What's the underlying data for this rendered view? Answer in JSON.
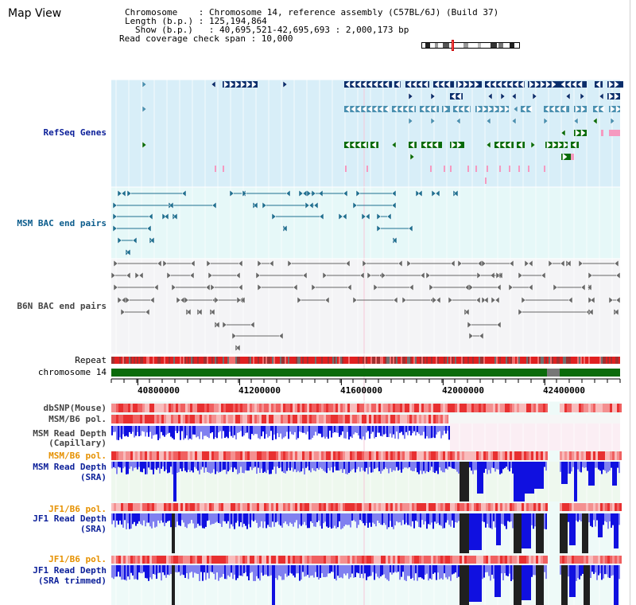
{
  "page": {
    "title": "Map View"
  },
  "info": {
    "line1": "Chromosome    : Chromosome 14, reference assembly (C57BL/6J) (Build 37)",
    "line2": "Length (b.p.) : 125,194,864",
    "line3": "Show (b.p.)   : 40,695,521-42,695,693 : 2,000,173 bp",
    "line4": "Read coverage check span : 10,000"
  },
  "tracks": {
    "refseq": "RefSeq Genes",
    "msm_bac": "MSM BAC end pairs",
    "b6n_bac": "B6N BAC end pairs",
    "repeat": "Repeat",
    "chromosome": "chromosome 14",
    "dbsnp": "dbSNP(Mouse)",
    "msm_b6_pol": "MSM/B6 pol.",
    "msm_depth_cap_1": "MSM Read Depth",
    "msm_depth_cap_2": "(Capillary)",
    "msm_b6_pol2": "MSM/B6 pol.",
    "msm_depth_sra_1": "MSM Read Depth",
    "msm_depth_sra_2": "(SRA)",
    "jf1_b6_pol": "JF1/B6 pol.",
    "jf1_depth_sra_1": "JF1 Read Depth",
    "jf1_depth_sra_2": "(SRA)",
    "jf1_b6_pol2": "JF1/B6 pol.",
    "jf1_depth_trim_1": "JF1 Read Depth",
    "jf1_depth_trim_2": "(SRA trimmed)"
  },
  "axis": {
    "ticks": [
      "40800000",
      "41200000",
      "41600000",
      "42000000",
      "42400000"
    ],
    "tick_values": [
      40800000,
      41200000,
      41600000,
      42000000,
      42400000
    ],
    "range": [
      40695521,
      42695693
    ]
  },
  "colors": {
    "refseq_bg": "#d8eef8",
    "bac_bg": "#e6f8f8",
    "b6n_bg": "#f4f4f6",
    "gene_navy": "#0b2e6b",
    "gene_steel": "#4a90b0",
    "gene_green": "#0a6b0a",
    "gene_pink": "#f59ac0",
    "bac_teal": "#1f6f8f",
    "bac_gray": "#666666",
    "chrom_green": "#0b6b0b",
    "chrom_gray": "#777777",
    "depth_blue": "#1010e0",
    "depth_light": "#8080f0",
    "depth_black": "#202020",
    "pol_red": "#e83030",
    "pol_pink": "#f8bcbc"
  }
}
